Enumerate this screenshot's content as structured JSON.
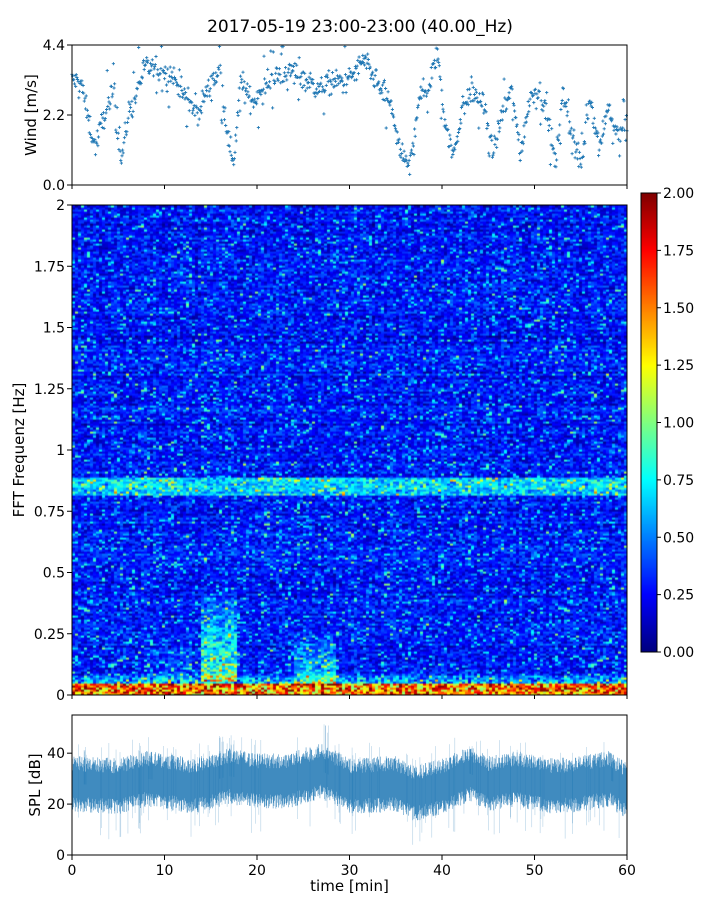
{
  "title": "2017-05-19 23:00-23:00 (40.00_Hz)",
  "chart_data": [
    {
      "type": "scatter",
      "panel": "wind",
      "ylabel": "Wind [m/s]",
      "xlim": [
        0,
        60
      ],
      "ylim": [
        0,
        4.4
      ],
      "yticks": [
        0.0,
        2.2,
        4.4
      ],
      "ytick_labels": [
        "0.0",
        "2.2",
        "4.4"
      ],
      "marker": "+",
      "color": "#1f77b4",
      "keypoints": [
        [
          0.0,
          3.3
        ],
        [
          1.0,
          3.2
        ],
        [
          1.8,
          2.0
        ],
        [
          2.5,
          1.2
        ],
        [
          3.5,
          2.2
        ],
        [
          4.5,
          2.9
        ],
        [
          5.3,
          0.7
        ],
        [
          6.2,
          2.4
        ],
        [
          7.0,
          2.9
        ],
        [
          7.8,
          3.7
        ],
        [
          9.5,
          3.6
        ],
        [
          11.0,
          3.4
        ],
        [
          12.5,
          2.6
        ],
        [
          13.5,
          2.2
        ],
        [
          14.5,
          2.9
        ],
        [
          16.0,
          3.6
        ],
        [
          17.0,
          1.2
        ],
        [
          17.5,
          0.8
        ],
        [
          18.2,
          3.2
        ],
        [
          19.5,
          2.6
        ],
        [
          21.5,
          3.3
        ],
        [
          23.5,
          3.6
        ],
        [
          25.0,
          3.4
        ],
        [
          26.5,
          3.0
        ],
        [
          28.0,
          3.2
        ],
        [
          30.0,
          3.3
        ],
        [
          31.5,
          3.9
        ],
        [
          33.0,
          3.2
        ],
        [
          34.5,
          2.5
        ],
        [
          35.5,
          1.0
        ],
        [
          36.5,
          0.5
        ],
        [
          37.5,
          2.8
        ],
        [
          38.5,
          3.0
        ],
        [
          39.5,
          4.2
        ],
        [
          40.3,
          2.0
        ],
        [
          41.2,
          0.9
        ],
        [
          42.2,
          2.4
        ],
        [
          43.2,
          3.0
        ],
        [
          44.5,
          2.5
        ],
        [
          45.5,
          1.0
        ],
        [
          46.5,
          2.2
        ],
        [
          47.5,
          3.0
        ],
        [
          48.5,
          1.0
        ],
        [
          49.5,
          2.8
        ],
        [
          50.5,
          3.0
        ],
        [
          51.5,
          2.0
        ],
        [
          52.3,
          0.6
        ],
        [
          53.0,
          2.9
        ],
        [
          54.0,
          1.8
        ],
        [
          55.0,
          0.5
        ],
        [
          56.0,
          2.8
        ],
        [
          57.0,
          1.2
        ],
        [
          58.0,
          2.5
        ],
        [
          59.0,
          1.5
        ],
        [
          60.0,
          1.9
        ]
      ]
    },
    {
      "type": "heatmap",
      "panel": "spectrogram",
      "ylabel": "FFT Frequenz [Hz]",
      "xlim": [
        0,
        60
      ],
      "ylim": [
        0,
        2
      ],
      "yticks": [
        0,
        0.25,
        0.5,
        0.75,
        1,
        1.25,
        1.5,
        1.75,
        2
      ],
      "ytick_labels": [
        "0",
        "0.25",
        "0.5",
        "0.75",
        "1",
        "1.25",
        "1.5",
        "1.75",
        "2"
      ],
      "colormap": "jet",
      "clim": [
        0.0,
        2.0
      ],
      "colorbar_ticks": [
        "0.00",
        "0.25",
        "0.50",
        "0.75",
        "1.00",
        "1.25",
        "1.50",
        "1.75",
        "2.00"
      ],
      "features": [
        {
          "description": "persistent high energy near 0-0.05 Hz",
          "value": 1.8
        },
        {
          "description": "enhanced band near 0.83-0.88 Hz",
          "value": 0.9
        },
        {
          "description": "energy burst 14-18 min, 0.1-0.45 Hz",
          "value": 1.2
        },
        {
          "description": "energy burst 24-28 min, 0.05-0.25 Hz",
          "value": 0.9
        }
      ],
      "background_level": 0.25
    },
    {
      "type": "area",
      "panel": "spl",
      "ylabel": "SPL [dB]",
      "xlabel": "time [min]",
      "xlim": [
        0,
        60
      ],
      "ylim": [
        0,
        55
      ],
      "xticks": [
        0,
        10,
        20,
        30,
        40,
        50,
        60
      ],
      "xtick_labels": [
        "0",
        "10",
        "20",
        "30",
        "40",
        "50",
        "60"
      ],
      "yticks": [
        0,
        20,
        40
      ],
      "ytick_labels": [
        "0",
        "20",
        "40"
      ],
      "color": "#1f77b4",
      "mean_keypoints": [
        [
          0,
          28
        ],
        [
          5,
          27
        ],
        [
          8,
          30
        ],
        [
          10,
          29
        ],
        [
          13,
          27
        ],
        [
          16,
          30
        ],
        [
          17,
          31
        ],
        [
          20,
          29
        ],
        [
          23,
          29
        ],
        [
          27,
          33
        ],
        [
          30,
          27
        ],
        [
          35,
          28
        ],
        [
          37,
          24
        ],
        [
          40,
          27
        ],
        [
          43,
          32
        ],
        [
          45,
          28
        ],
        [
          48,
          30
        ],
        [
          52,
          27
        ],
        [
          55,
          28
        ],
        [
          58,
          30
        ],
        [
          60,
          25
        ]
      ],
      "peaks": [
        [
          16.2,
          48
        ],
        [
          17.3,
          46
        ],
        [
          27.5,
          52
        ],
        [
          43.0,
          43
        ],
        [
          8.5,
          42
        ],
        [
          1.5,
          43
        ],
        [
          58.5,
          40
        ]
      ]
    }
  ]
}
